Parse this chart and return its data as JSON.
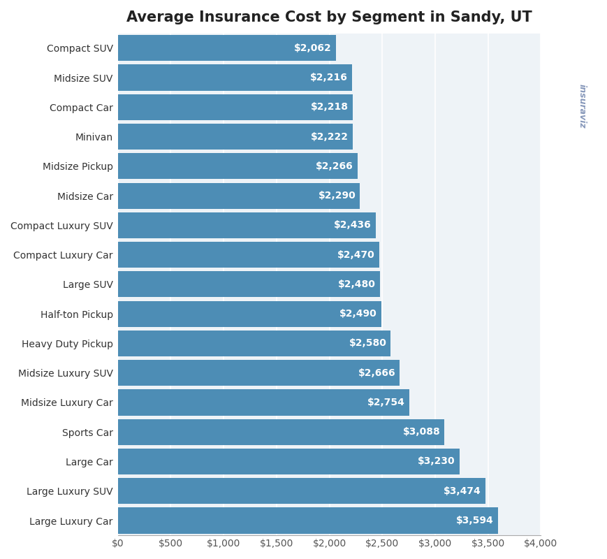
{
  "title": "Average Insurance Cost by Segment in Sandy, UT",
  "categories": [
    "Compact SUV",
    "Midsize SUV",
    "Compact Car",
    "Minivan",
    "Midsize Pickup",
    "Midsize Car",
    "Compact Luxury SUV",
    "Compact Luxury Car",
    "Large SUV",
    "Half-ton Pickup",
    "Heavy Duty Pickup",
    "Midsize Luxury SUV",
    "Midsize Luxury Car",
    "Sports Car",
    "Large Car",
    "Large Luxury SUV",
    "Large Luxury Car"
  ],
  "values": [
    2062,
    2216,
    2218,
    2222,
    2266,
    2290,
    2436,
    2470,
    2480,
    2490,
    2580,
    2666,
    2754,
    3088,
    3230,
    3474,
    3594
  ],
  "bar_color": "#4d8db5",
  "label_color": "#ffffff",
  "background_color": "#ffffff",
  "plot_bg_color": "#eef3f7",
  "grid_color": "#ffffff",
  "title_fontsize": 15,
  "label_fontsize": 10,
  "tick_fontsize": 10,
  "xlim": [
    0,
    4000
  ],
  "xticks": [
    0,
    500,
    1000,
    1500,
    2000,
    2500,
    3000,
    3500,
    4000
  ]
}
